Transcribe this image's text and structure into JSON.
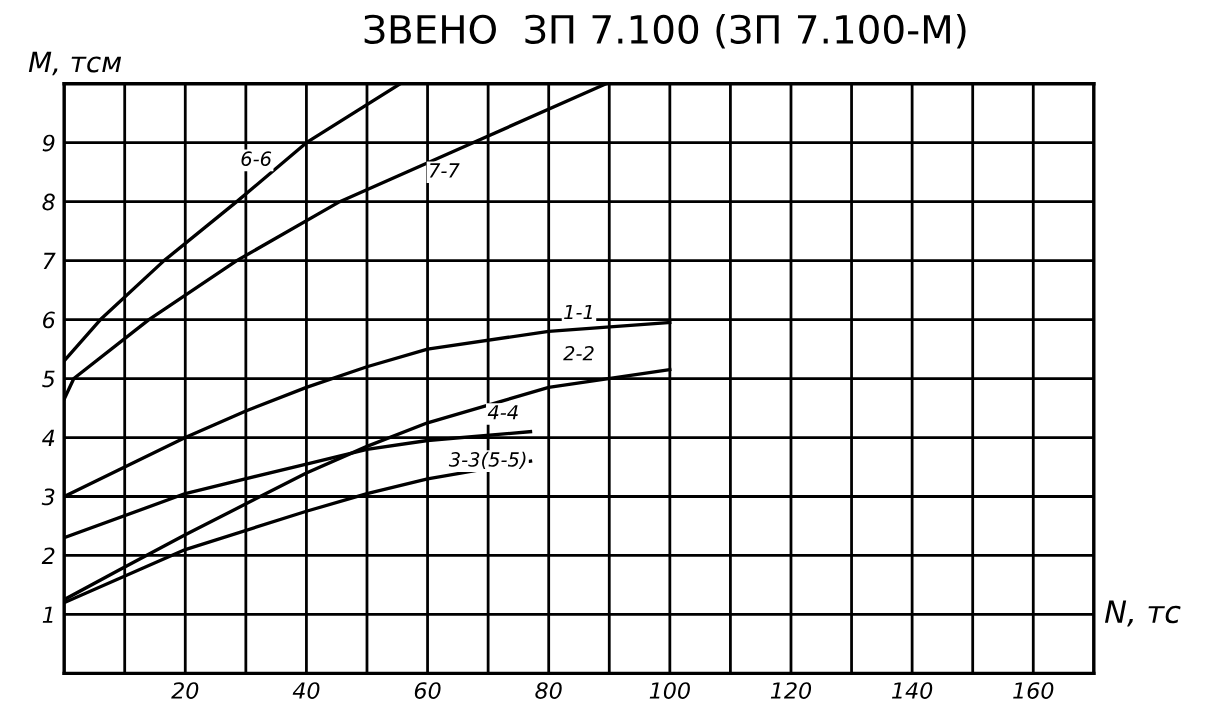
{
  "chart_data": {
    "type": "line",
    "title": "ЗВЕНО  ЗП 7.100 (ЗП 7.100-М)",
    "xlabel": "N, тс",
    "ylabel": "M, тсм",
    "xlim": [
      0,
      170
    ],
    "ylim": [
      0,
      10
    ],
    "xticks": [
      {
        "value": 0,
        "label": null
      },
      {
        "value": 10,
        "label": null
      },
      20,
      {
        "value": 30,
        "label": null
      },
      40,
      {
        "value": 50,
        "label": null
      },
      60,
      {
        "value": 70,
        "label": null
      },
      80,
      {
        "value": 90,
        "label": null
      },
      100,
      {
        "value": 110,
        "label": null
      },
      120,
      {
        "value": 130,
        "label": null
      },
      140,
      {
        "value": 150,
        "label": null
      },
      160,
      {
        "value": 170,
        "label": null
      }
    ],
    "yticks": [
      {
        "value": 0,
        "label": null
      },
      1,
      2,
      3,
      4,
      5,
      6,
      7,
      8,
      9,
      {
        "value": 10,
        "label": null
      }
    ],
    "grid": true,
    "legend": false,
    "marker": "none",
    "line_style": "solid",
    "series": [
      {
        "color": "#000000",
        "x": [
          0,
          6,
          16.5,
          28.5,
          40,
          55.5
        ],
        "values": [
          5.3,
          6,
          7,
          8,
          9,
          10
        ]
      },
      {
        "color": "#000000",
        "x": [
          0,
          1.6,
          14,
          28.5,
          45.5,
          67.5,
          89.5
        ],
        "values": [
          4.65,
          5,
          6,
          7,
          8,
          9,
          10
        ]
      },
      {
        "color": "#000000",
        "x": [
          0,
          10,
          20,
          30,
          40,
          50,
          60,
          80,
          100
        ],
        "values": [
          3.0,
          3.5,
          4.0,
          4.45,
          4.85,
          5.2,
          5.5,
          5.8,
          5.95
        ]
      },
      {
        "color": "#000000",
        "x": [
          0,
          9,
          20,
          40,
          50,
          60,
          80,
          100
        ],
        "values": [
          1.25,
          1.75,
          2.35,
          3.4,
          3.85,
          4.25,
          4.85,
          5.15
        ]
      },
      {
        "color": "#000000",
        "x": [
          0,
          20,
          40,
          50,
          60,
          77
        ],
        "values": [
          2.3,
          3.05,
          3.55,
          3.8,
          3.95,
          4.1
        ]
      },
      {
        "color": "#000000",
        "x": [
          0,
          20,
          40,
          50,
          60,
          77
        ],
        "values": [
          1.2,
          2.1,
          2.75,
          3.05,
          3.3,
          3.6
        ]
      }
    ],
    "annotations": [
      {
        "text": "6-6",
        "x": 31.7,
        "y": 8.7
      },
      {
        "text": "7-7",
        "x": 62.7,
        "y": 8.5
      },
      {
        "text": "1-1",
        "x": 85,
        "y": 6.1
      },
      {
        "text": "2-2",
        "x": 85,
        "y": 5.4
      },
      {
        "text": "4-4",
        "x": 72.5,
        "y": 4.4
      },
      {
        "text": "3-3(5-5)",
        "x": 70,
        "y": 3.6
      }
    ]
  }
}
